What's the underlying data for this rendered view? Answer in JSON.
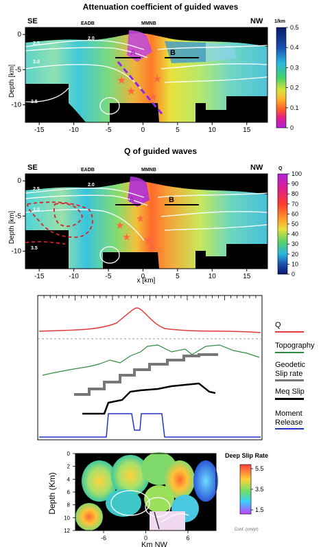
{
  "panel1": {
    "title": "Attenuation coefficient of guided waves",
    "ylabel": "Depth [km]",
    "corner_left": "SE",
    "corner_right": "NW",
    "label_eadb": "EADB",
    "label_mmnb": "MMNB",
    "label_a": "A",
    "label_b": "B",
    "colorbar_unit": "1/km",
    "colorbar_ticks": [
      "0.5",
      "0.4",
      "0.3",
      "0.2",
      "0.1",
      "0"
    ],
    "x_ticks": [
      "-15",
      "-10",
      "-5",
      "0",
      "5",
      "10",
      "15"
    ],
    "y_ticks": [
      "0",
      "-5",
      "-10"
    ]
  },
  "panel2": {
    "title": "Q of guided waves",
    "ylabel": "Depth [km]",
    "xlabel": "x [km]",
    "corner_left": "SE",
    "corner_right": "NW",
    "label_eadb": "EADB",
    "label_mmnb": "MMNB",
    "label_a": "A",
    "label_b": "B",
    "colorbar_unit": "Q",
    "colorbar_ticks": [
      "100",
      "90",
      "80",
      "70",
      "60",
      "50",
      "40",
      "30",
      "20",
      "10",
      "0"
    ],
    "x_ticks": [
      "-15",
      "-10",
      "-5",
      "0",
      "5",
      "10",
      "15"
    ],
    "y_ticks": [
      "0",
      "-5",
      "-10"
    ]
  },
  "panel3": {
    "legend": {
      "q": "Q",
      "topography": "Topography",
      "geodetic_line1": "Geodetic",
      "geodetic_line2": "Slip rate",
      "meq": "Meq Slip",
      "moment_line1": "Moment",
      "moment_line2": "Release"
    },
    "colors": {
      "q": "#e23b3b",
      "topography": "#2e8b3e",
      "geodetic": "#777777",
      "meq": "#000000",
      "moment": "#2233cc"
    }
  },
  "panel4": {
    "ylabel": "Depth (Km)",
    "xlabel": "Km NW",
    "y_ticks": [
      "0",
      "2",
      "4",
      "6",
      "8",
      "10",
      "12"
    ],
    "x_ticks": [
      "-6",
      "0",
      "6"
    ],
    "colorbar_title": "Deep Slip Rate",
    "colorbar_ticks": [
      "5.5",
      "3.5",
      "1.5"
    ],
    "colorbar_unit": "Conf. (cm/yr)"
  },
  "chart_data": [
    {
      "type": "heatmap",
      "title": "Attenuation coefficient of guided waves",
      "ylabel": "Depth [km]",
      "xlim": [
        -17,
        18
      ],
      "ylim": [
        -12.5,
        1
      ],
      "colorbar": {
        "label": "1/km",
        "range": [
          0,
          0.5
        ]
      },
      "contour_labels": [
        "2.5",
        "2.0",
        "3.0",
        "3.5"
      ]
    },
    {
      "type": "heatmap",
      "title": "Q of guided waves",
      "xlabel": "x [km]",
      "ylabel": "Depth [km]",
      "xlim": [
        -17,
        18
      ],
      "ylim": [
        -12.5,
        1
      ],
      "colorbar": {
        "label": "Q",
        "range": [
          0,
          100
        ]
      },
      "contour_labels": [
        "2.5",
        "2.0",
        "3.0",
        "3.5"
      ]
    },
    {
      "type": "line",
      "series": [
        {
          "name": "Q"
        },
        {
          "name": "Topography"
        },
        {
          "name": "Geodetic Slip rate"
        },
        {
          "name": "Meq Slip"
        },
        {
          "name": "Moment Release"
        }
      ]
    },
    {
      "type": "heatmap",
      "xlabel": "Km NW",
      "ylabel": "Depth (Km)",
      "ylim": [
        12,
        0
      ],
      "colorbar": {
        "label": "Deep Slip Rate",
        "range": [
          1.5,
          5.5
        ]
      }
    }
  ]
}
